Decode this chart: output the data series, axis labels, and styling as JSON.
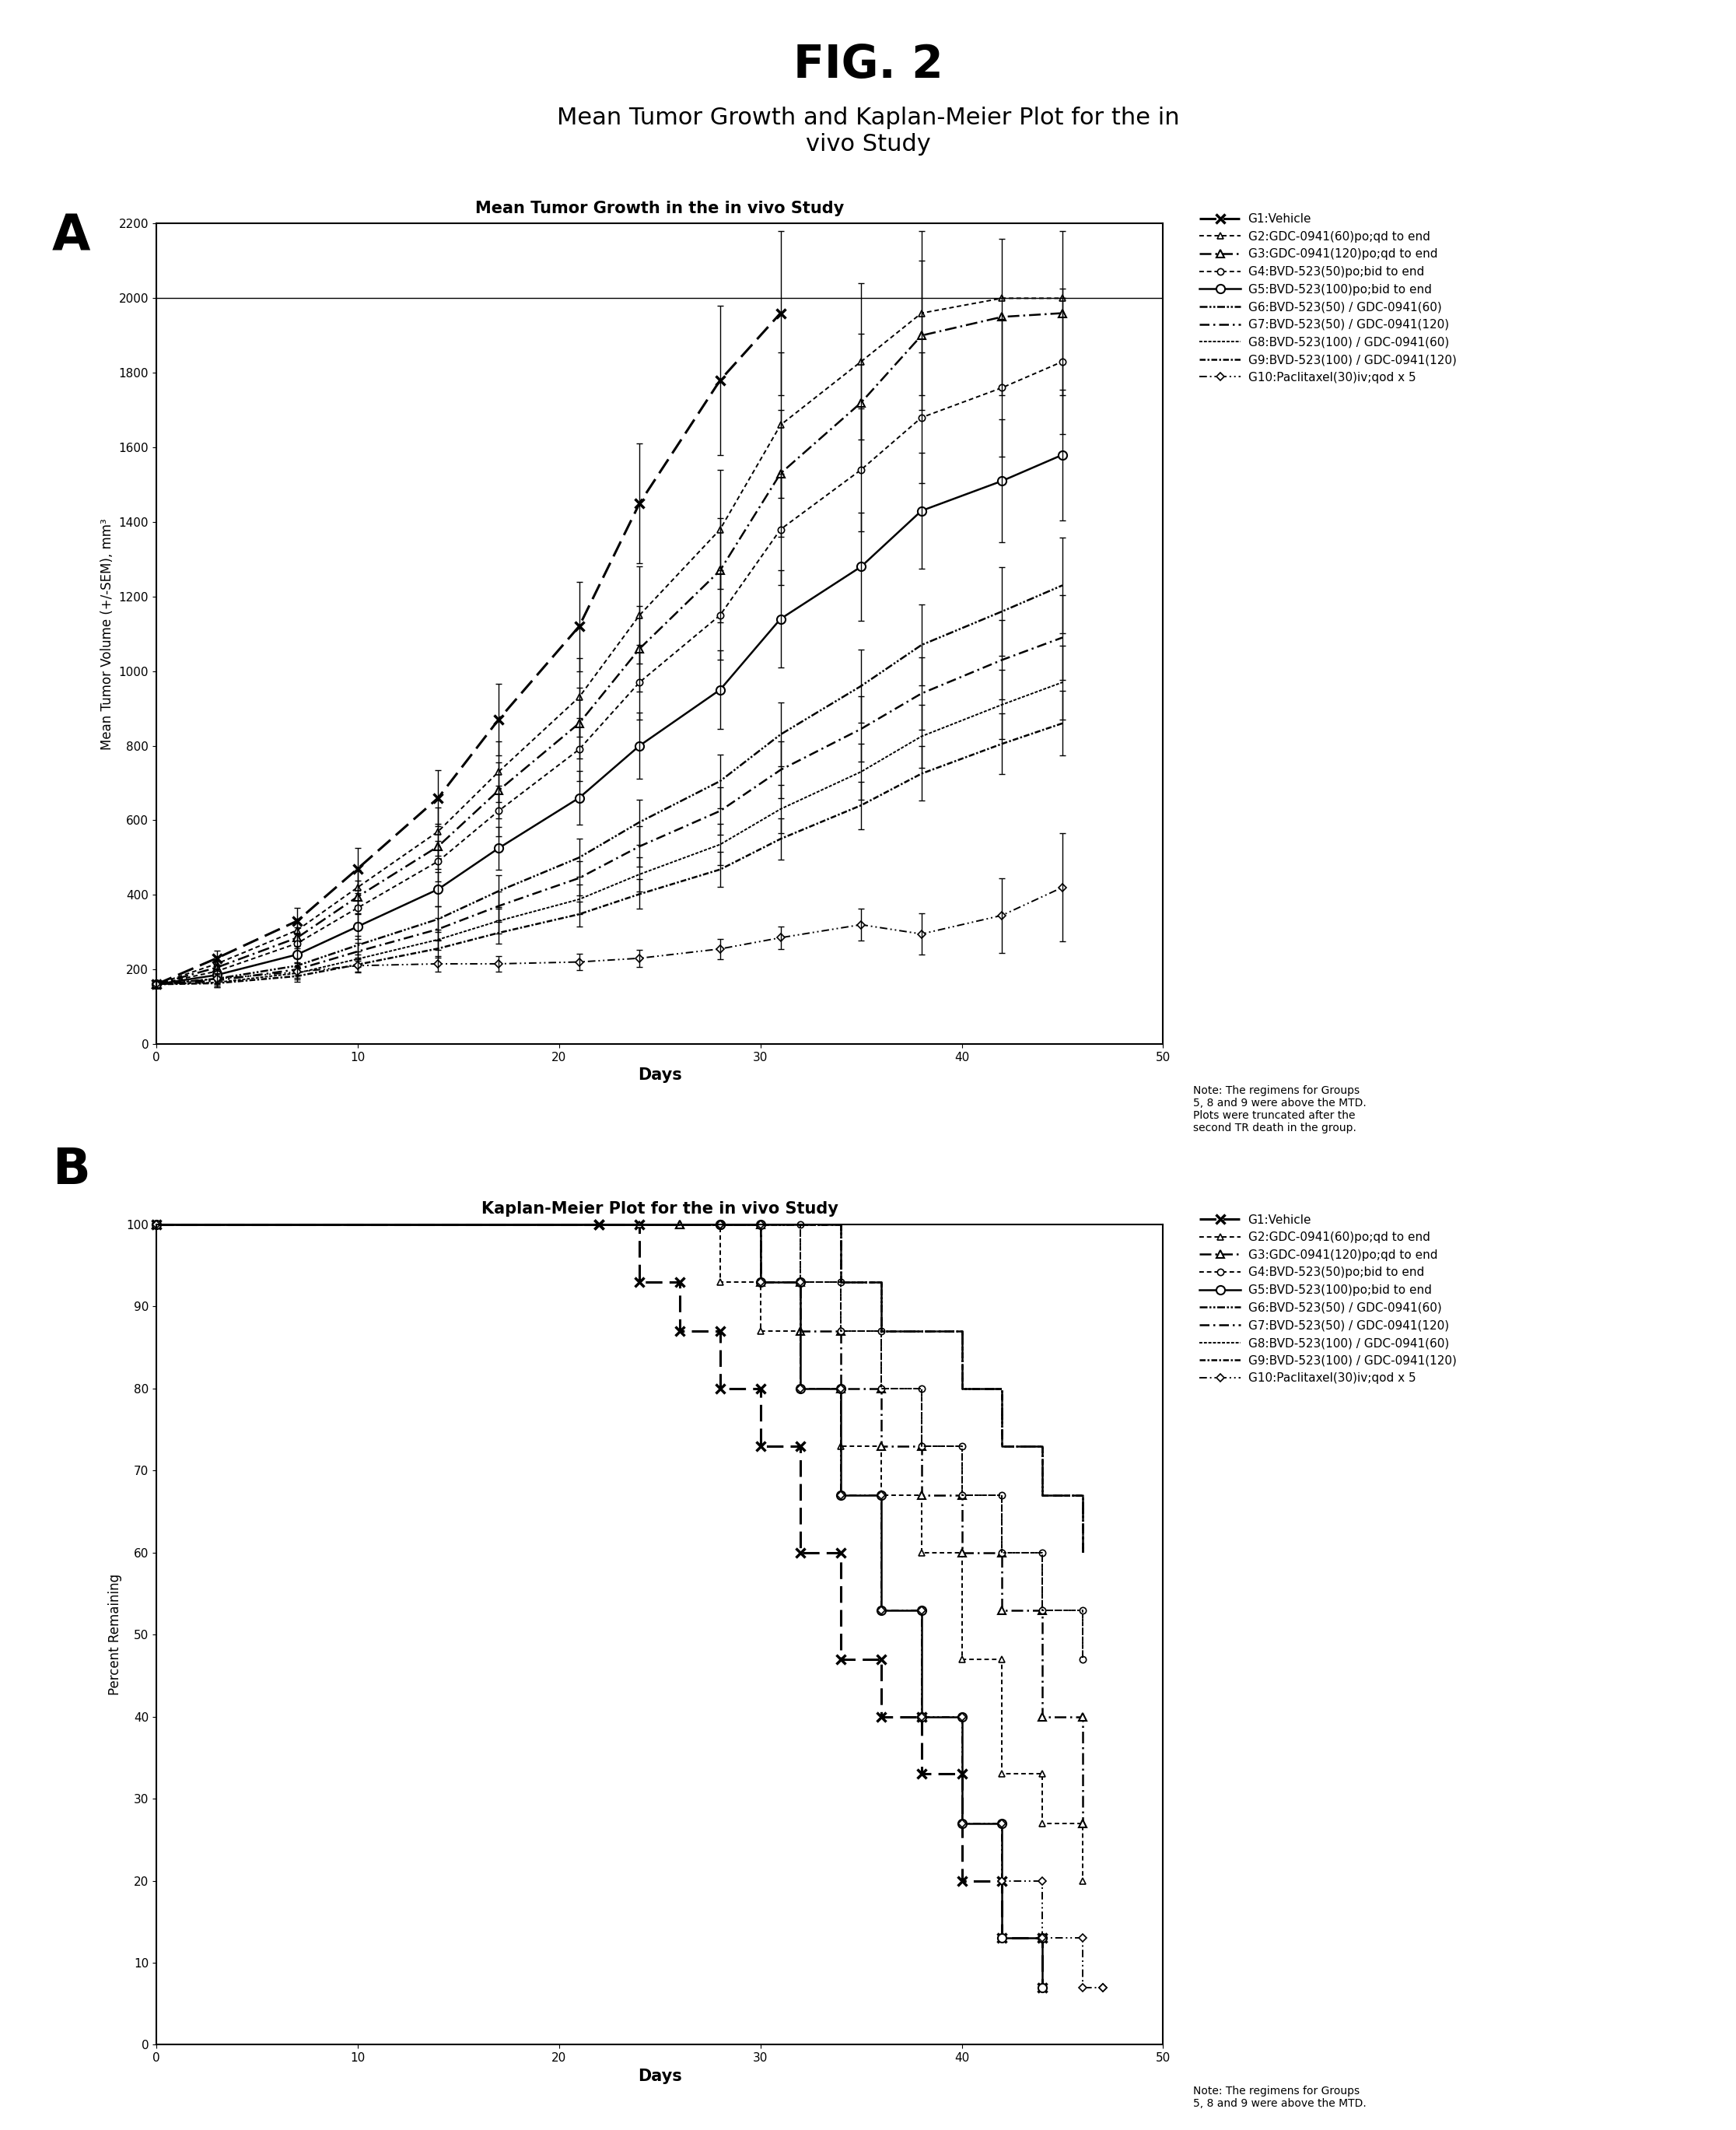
{
  "fig_title": "FIG. 2",
  "subtitle": "Mean Tumor Growth and Kaplan-Meier Plot for the in\nvivo Study",
  "panel_a_title": "Mean Tumor Growth in the in vivo Study",
  "panel_b_title": "Kaplan-Meier Plot for the in vivo Study",
  "xlabel_a": "Days",
  "ylabel_a": "Mean Tumor Volume (+/-SEM), mm³",
  "xlabel_b": "Days",
  "ylabel_b": "Percent Remaining",
  "xlim": [
    0,
    50
  ],
  "ylim_a": [
    0,
    2200
  ],
  "ylim_b": [
    0,
    100
  ],
  "hline_a": 2000,
  "groups": [
    "G1:Vehicle",
    "G2:GDC-0941(60)po;qd to end",
    "G3:GDC-0941(120)po;qd to end",
    "G4:BVD-523(50)po;bid to end",
    "G5:BVD-523(100)po;bid to end",
    "G6:BVD-523(50) / GDC-0941(60)",
    "G7:BVD-523(50) / GDC-0941(120)",
    "G8:BVD-523(100) / GDC-0941(60)",
    "G9:BVD-523(100) / GDC-0941(120)",
    "G10:Paclitaxel(30)iv;qod x 5"
  ],
  "note_a": "Note: The regimens for Groups\n5, 8 and 9 were above the MTD.\nPlots were truncated after the\nsecond TR death in the group.",
  "note_b": "Note: The regimens for Groups\n5, 8 and 9 were above the MTD.",
  "tumor_data": {
    "G1": {
      "days": [
        0,
        3,
        7,
        10,
        14,
        17,
        21,
        24,
        28,
        31
      ],
      "mean": [
        160,
        230,
        330,
        470,
        660,
        870,
        1120,
        1450,
        1780,
        1960
      ],
      "sem": [
        10,
        20,
        35,
        55,
        75,
        95,
        120,
        160,
        200,
        220
      ]
    },
    "G2": {
      "days": [
        0,
        3,
        7,
        10,
        14,
        17,
        21,
        24,
        28,
        31,
        35,
        38,
        42,
        45
      ],
      "mean": [
        160,
        215,
        305,
        420,
        570,
        730,
        930,
        1150,
        1380,
        1660,
        1830,
        1960,
        2000,
        2000
      ],
      "sem": [
        10,
        20,
        30,
        48,
        65,
        82,
        105,
        130,
        160,
        195,
        210,
        220,
        0,
        0
      ]
    },
    "G3": {
      "days": [
        0,
        3,
        7,
        10,
        14,
        17,
        21,
        24,
        28,
        31,
        35,
        38,
        42,
        45
      ],
      "mean": [
        160,
        205,
        285,
        395,
        530,
        680,
        860,
        1060,
        1270,
        1530,
        1720,
        1900,
        1950,
        1960
      ],
      "sem": [
        10,
        18,
        28,
        44,
        60,
        75,
        95,
        115,
        140,
        170,
        185,
        200,
        210,
        220
      ]
    },
    "G4": {
      "days": [
        0,
        3,
        7,
        10,
        14,
        17,
        21,
        24,
        28,
        31,
        35,
        38,
        42,
        45
      ],
      "mean": [
        160,
        195,
        270,
        365,
        490,
        625,
        790,
        970,
        1150,
        1380,
        1540,
        1680,
        1760,
        1830
      ],
      "sem": [
        10,
        17,
        26,
        40,
        55,
        68,
        85,
        100,
        120,
        150,
        165,
        175,
        185,
        195
      ]
    },
    "G5": {
      "days": [
        0,
        3,
        7,
        10,
        14,
        17,
        21,
        24,
        28,
        31,
        35,
        38,
        42,
        45
      ],
      "mean": [
        160,
        185,
        240,
        315,
        415,
        525,
        660,
        800,
        950,
        1140,
        1280,
        1430,
        1510,
        1580
      ],
      "sem": [
        10,
        15,
        22,
        33,
        46,
        58,
        72,
        88,
        105,
        130,
        145,
        155,
        165,
        175
      ]
    },
    "G6": {
      "days": [
        0,
        3,
        7,
        10,
        14,
        17,
        21,
        24,
        28,
        31,
        35,
        38,
        42,
        45
      ],
      "mean": [
        160,
        175,
        210,
        265,
        335,
        410,
        500,
        595,
        705,
        830,
        960,
        1070,
        1160,
        1230
      ],
      "sem": [
        10,
        14,
        19,
        26,
        34,
        42,
        51,
        61,
        72,
        86,
        98,
        108,
        118,
        128
      ]
    },
    "G7": {
      "days": [
        0,
        3,
        7,
        10,
        14,
        17,
        21,
        24,
        28,
        31,
        35,
        38,
        42,
        45
      ],
      "mean": [
        160,
        170,
        200,
        248,
        308,
        370,
        445,
        530,
        625,
        735,
        845,
        940,
        1030,
        1090
      ],
      "sem": [
        10,
        13,
        17,
        24,
        31,
        38,
        46,
        55,
        64,
        76,
        87,
        97,
        106,
        113
      ]
    },
    "G8": {
      "days": [
        0,
        3,
        7,
        10,
        14,
        17,
        21,
        24,
        28,
        31,
        35,
        38,
        42,
        45
      ],
      "mean": [
        160,
        165,
        190,
        228,
        280,
        330,
        388,
        455,
        535,
        630,
        730,
        825,
        910,
        970
      ],
      "sem": [
        10,
        12,
        16,
        21,
        27,
        33,
        39,
        46,
        55,
        65,
        75,
        84,
        93,
        99
      ]
    },
    "G9": {
      "days": [
        0,
        3,
        7,
        10,
        14,
        17,
        21,
        24,
        28,
        31,
        35,
        38,
        42,
        45
      ],
      "mean": [
        160,
        163,
        182,
        213,
        256,
        298,
        348,
        402,
        468,
        550,
        640,
        725,
        805,
        860
      ],
      "sem": [
        10,
        11,
        15,
        19,
        24,
        29,
        34,
        40,
        47,
        56,
        64,
        73,
        81,
        87
      ]
    },
    "G10": {
      "days": [
        0,
        3,
        7,
        10,
        14,
        17,
        21,
        24,
        28,
        31,
        35,
        38,
        42,
        45
      ],
      "mean": [
        160,
        175,
        193,
        210,
        215,
        215,
        220,
        230,
        255,
        285,
        320,
        295,
        345,
        420
      ],
      "sem": [
        10,
        13,
        16,
        18,
        20,
        20,
        21,
        23,
        27,
        30,
        42,
        55,
        100,
        145
      ]
    }
  },
  "km_data": {
    "G1": {
      "days": [
        0,
        22,
        24,
        26,
        28,
        30,
        32,
        34,
        36,
        38,
        40,
        42,
        44
      ],
      "pct": [
        100,
        100,
        93,
        87,
        80,
        73,
        60,
        47,
        40,
        33,
        20,
        13,
        7
      ]
    },
    "G2": {
      "days": [
        0,
        24,
        28,
        30,
        32,
        34,
        36,
        38,
        40,
        42,
        44,
        46
      ],
      "pct": [
        100,
        100,
        93,
        87,
        80,
        73,
        67,
        60,
        47,
        33,
        27,
        20
      ]
    },
    "G3": {
      "days": [
        0,
        26,
        30,
        32,
        34,
        36,
        38,
        40,
        42,
        44,
        46
      ],
      "pct": [
        100,
        100,
        93,
        87,
        80,
        73,
        67,
        60,
        53,
        40,
        27
      ]
    },
    "G4": {
      "days": [
        0,
        28,
        32,
        34,
        36,
        38,
        40,
        42,
        44,
        46
      ],
      "pct": [
        100,
        100,
        93,
        87,
        80,
        73,
        67,
        60,
        53,
        47
      ]
    },
    "G5": {
      "days": [
        0,
        28,
        30,
        32,
        34,
        36,
        38,
        40,
        42,
        44
      ],
      "pct": [
        100,
        100,
        93,
        80,
        67,
        53,
        40,
        27,
        13,
        7
      ]
    },
    "G6": {
      "days": [
        0,
        30,
        34,
        36,
        38,
        40,
        42,
        44,
        46
      ],
      "pct": [
        100,
        100,
        93,
        87,
        87,
        80,
        73,
        67,
        60
      ]
    },
    "G7": {
      "days": [
        0,
        30,
        34,
        36,
        38,
        40,
        42,
        44,
        46
      ],
      "pct": [
        100,
        100,
        93,
        87,
        87,
        80,
        73,
        67,
        60
      ]
    },
    "G8": {
      "days": [
        0,
        28,
        32,
        34,
        36,
        38,
        40,
        42,
        44,
        46
      ],
      "pct": [
        100,
        100,
        93,
        87,
        80,
        73,
        67,
        60,
        53,
        47
      ]
    },
    "G9": {
      "days": [
        0,
        30,
        34,
        36,
        38,
        40,
        42,
        44,
        46
      ],
      "pct": [
        100,
        100,
        93,
        87,
        87,
        80,
        73,
        67,
        60
      ]
    },
    "G10": {
      "days": [
        0,
        28,
        30,
        32,
        34,
        36,
        38,
        40,
        42,
        44,
        46,
        47
      ],
      "pct": [
        100,
        100,
        93,
        80,
        67,
        53,
        40,
        27,
        20,
        13,
        7,
        7
      ]
    }
  }
}
